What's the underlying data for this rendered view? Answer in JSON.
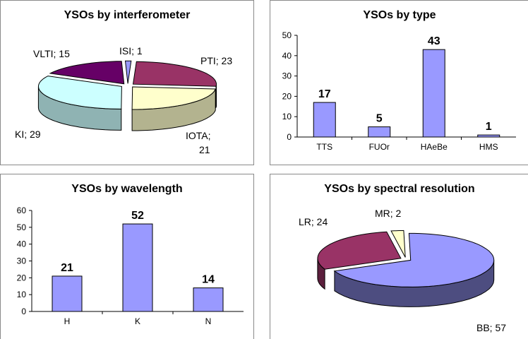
{
  "chart_data": [
    {
      "type": "pie",
      "title": "YSOs by interferometer",
      "slices": [
        {
          "label": "ISI",
          "value": 1,
          "color": "#9999ff",
          "side": "#6b6bb3"
        },
        {
          "label": "PTI",
          "value": 23,
          "color": "#993366",
          "side": "#6b2447"
        },
        {
          "label": "IOTA",
          "value": 21,
          "color": "#ffffcc",
          "side": "#b3b38f"
        },
        {
          "label": "KI",
          "value": 29,
          "color": "#ccffff",
          "side": "#8fb3b3"
        },
        {
          "label": "VLTI",
          "value": 15,
          "color": "#660066",
          "side": "#470047"
        }
      ],
      "label_text": {
        "ISI": "ISI; 1",
        "PTI": "PTI; 23",
        "IOTA_1": "IOTA;",
        "IOTA_2": "21",
        "KI": "KI; 29",
        "VLTI": "VLTI; 15"
      }
    },
    {
      "type": "bar",
      "title": "YSOs by type",
      "categories": [
        "TTS",
        "FUOr",
        "HAeBe",
        "HMS"
      ],
      "values": [
        17,
        5,
        43,
        1
      ],
      "ylim": [
        0,
        50
      ],
      "yticks": [
        0,
        10,
        20,
        30,
        40,
        50
      ],
      "color": "#9999ff"
    },
    {
      "type": "bar",
      "title": "YSOs by wavelength",
      "categories": [
        "H",
        "K",
        "N"
      ],
      "values": [
        21,
        52,
        14
      ],
      "ylim": [
        0,
        60
      ],
      "yticks": [
        0,
        10,
        20,
        30,
        40,
        50,
        60
      ],
      "color": "#9999ff"
    },
    {
      "type": "pie",
      "title": "YSOs by spectral resolution",
      "slices": [
        {
          "label": "BB",
          "value": 57,
          "color": "#9999ff",
          "side": "#4d4d80"
        },
        {
          "label": "LR",
          "value": 24,
          "color": "#993366",
          "side": "#5c1f3d"
        },
        {
          "label": "MR",
          "value": 2,
          "color": "#ffffcc",
          "side": "#b3b38f"
        }
      ],
      "label_text": {
        "BB": "BB; 57",
        "LR": "LR; 24",
        "MR": "MR; 2"
      }
    }
  ]
}
